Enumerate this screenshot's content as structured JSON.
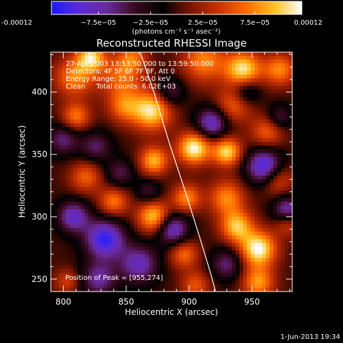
{
  "chart_data": {
    "type": "heatmap",
    "title": "Reconstructed RHESSI Image",
    "colorbar": {
      "tick_labels": [
        "-0.00012",
        "−7.5e−05",
        "−2.5e−05",
        "2.5e−05",
        "7.5e−05",
        "0.00012"
      ],
      "tick_values": [
        -0.00012,
        -7.5e-05,
        -2.5e-05,
        2.5e-05,
        7.5e-05,
        0.00012
      ],
      "range": [
        -0.00012,
        0.00012
      ],
      "units_label": "(photons cm⁻² s⁻¹ asec⁻²)",
      "colors": [
        "#1a1aff",
        "#5a2bd6",
        "#6b2a9a",
        "#3a0a20",
        "#000000",
        "#7a1500",
        "#c83200",
        "#ff6a00",
        "#ffc020",
        "#ffffff"
      ]
    },
    "xlabel": "Heliocentric X (arcsec)",
    "ylabel": "Heliocentric Y (arcsec)",
    "xlim": [
      790,
      982
    ],
    "ylim": [
      240,
      432
    ],
    "xticks": [
      800,
      850,
      900,
      950
    ],
    "yticks": [
      250,
      300,
      350,
      400
    ],
    "xtick_labels": [
      "800",
      "850",
      "900",
      "950"
    ],
    "ytick_labels": [
      "250",
      "300",
      "350",
      "400"
    ],
    "annotations": [
      "27-Apr-2003 13:53:50.000 to 13:59:50.000",
      "Detectors: 4F 5F 6F 7F 8F, Att 0",
      "Energy Range: 25.0 - 50.0 keV",
      "Clean     Total counts: 6.02E+03"
    ],
    "peak_label": "Position of Peak = [955,274]",
    "peak": [
      955,
      274
    ],
    "limb_curve": [
      [
        861,
        432
      ],
      [
        872,
        400
      ],
      [
        884,
        360
      ],
      [
        897,
        320
      ],
      [
        908,
        285
      ],
      [
        917,
        255
      ],
      [
        921,
        240
      ]
    ],
    "blobs": [
      {
        "x": 809,
        "y": 412,
        "v": 7.5e-05,
        "s": 11
      },
      {
        "x": 822,
        "y": 428,
        "v": 0.0001,
        "s": 8
      },
      {
        "x": 846,
        "y": 412,
        "v": 6.5e-05,
        "s": 12
      },
      {
        "x": 855,
        "y": 428,
        "v": 5.5e-05,
        "s": 8
      },
      {
        "x": 870,
        "y": 385,
        "v": 0.00011,
        "s": 11
      },
      {
        "x": 848,
        "y": 388,
        "v": 6e-05,
        "s": 9
      },
      {
        "x": 912,
        "y": 425,
        "v": 7.5e-05,
        "s": 12
      },
      {
        "x": 943,
        "y": 418,
        "v": 0.00011,
        "s": 10
      },
      {
        "x": 972,
        "y": 418,
        "v": 7.5e-05,
        "s": 9
      },
      {
        "x": 936,
        "y": 390,
        "v": 6.5e-05,
        "s": 10
      },
      {
        "x": 962,
        "y": 368,
        "v": 6e-05,
        "s": 9
      },
      {
        "x": 904,
        "y": 355,
        "v": 0.00012,
        "s": 9
      },
      {
        "x": 930,
        "y": 352,
        "v": 0.000105,
        "s": 8
      },
      {
        "x": 872,
        "y": 345,
        "v": 9e-05,
        "s": 8
      },
      {
        "x": 810,
        "y": 380,
        "v": 7e-05,
        "s": 8
      },
      {
        "x": 818,
        "y": 332,
        "v": 6e-05,
        "s": 9
      },
      {
        "x": 840,
        "y": 312,
        "v": 7e-05,
        "s": 8
      },
      {
        "x": 872,
        "y": 300,
        "v": 0.0001,
        "s": 9
      },
      {
        "x": 898,
        "y": 315,
        "v": 7.5e-05,
        "s": 8
      },
      {
        "x": 930,
        "y": 315,
        "v": 7.5e-05,
        "s": 10
      },
      {
        "x": 970,
        "y": 330,
        "v": 6e-05,
        "s": 9
      },
      {
        "x": 955,
        "y": 274,
        "v": 0.00012,
        "s": 10
      },
      {
        "x": 938,
        "y": 292,
        "v": 9.5e-05,
        "s": 9
      },
      {
        "x": 896,
        "y": 270,
        "v": 6.5e-05,
        "s": 8
      },
      {
        "x": 905,
        "y": 245,
        "v": 5.5e-05,
        "s": 8
      },
      {
        "x": 955,
        "y": 247,
        "v": 8e-05,
        "s": 9
      },
      {
        "x": 978,
        "y": 295,
        "v": 5.5e-05,
        "s": 7
      },
      {
        "x": 803,
        "y": 248,
        "v": 4.5e-05,
        "s": 7
      },
      {
        "x": 800,
        "y": 362,
        "v": -6e-05,
        "s": 9
      },
      {
        "x": 826,
        "y": 356,
        "v": -5.5e-05,
        "s": 9
      },
      {
        "x": 833,
        "y": 282,
        "v": -0.00011,
        "s": 11
      },
      {
        "x": 808,
        "y": 300,
        "v": -8.5e-05,
        "s": 9
      },
      {
        "x": 860,
        "y": 262,
        "v": -8e-05,
        "s": 11
      },
      {
        "x": 828,
        "y": 250,
        "v": -7e-05,
        "s": 10
      },
      {
        "x": 887,
        "y": 290,
        "v": -9e-05,
        "s": 9
      },
      {
        "x": 960,
        "y": 340,
        "v": -0.00011,
        "s": 10
      },
      {
        "x": 918,
        "y": 375,
        "v": -9e-05,
        "s": 9
      },
      {
        "x": 945,
        "y": 400,
        "v": -6e-05,
        "s": 8
      },
      {
        "x": 885,
        "y": 400,
        "v": -5.5e-05,
        "s": 8
      },
      {
        "x": 978,
        "y": 305,
        "v": -8.5e-05,
        "s": 8
      },
      {
        "x": 972,
        "y": 380,
        "v": -5e-05,
        "s": 7
      },
      {
        "x": 930,
        "y": 262,
        "v": -6e-05,
        "s": 9
      },
      {
        "x": 845,
        "y": 335,
        "v": -5e-05,
        "s": 8
      },
      {
        "x": 868,
        "y": 320,
        "v": -4.5e-05,
        "s": 7
      }
    ]
  },
  "footer": {
    "timestamp": "1-Jun-2013 19:34"
  }
}
